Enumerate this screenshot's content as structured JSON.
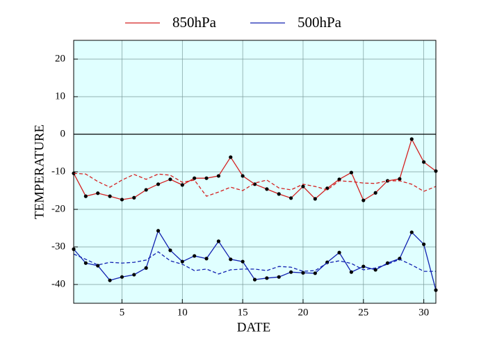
{
  "chart_data": {
    "type": "line",
    "x_label": "DATE",
    "y_label": "TEMPERATURE",
    "x": [
      1,
      2,
      3,
      4,
      5,
      6,
      7,
      8,
      9,
      10,
      11,
      12,
      13,
      14,
      15,
      16,
      17,
      18,
      19,
      20,
      21,
      22,
      23,
      24,
      25,
      26,
      27,
      28,
      29,
      30,
      31
    ],
    "xlim": [
      1,
      31
    ],
    "xticks": [
      5,
      10,
      15,
      20,
      25,
      30
    ],
    "ylim": [
      -45,
      25
    ],
    "yticks": [
      -40,
      -30,
      -20,
      -10,
      0,
      10,
      20
    ],
    "grid": true,
    "zero_line": true,
    "background": "#e0ffff",
    "series": [
      {
        "name": "850hPa",
        "color": "#d42020",
        "markers": true,
        "values": [
          -10.4,
          -16.5,
          -15.7,
          -16.5,
          -17.4,
          -16.9,
          -14.8,
          -13.3,
          -12.0,
          -13.5,
          -11.7,
          -11.7,
          -11.1,
          -6.1,
          -11.1,
          -13.3,
          -14.6,
          -15.9,
          -17.0,
          -13.9,
          -17.2,
          -14.4,
          -12.0,
          -10.2,
          -17.6,
          -15.6,
          -12.4,
          -11.9,
          -1.3,
          -7.4,
          -9.8
        ]
      },
      {
        "name": "500hPa",
        "color": "#1020b0",
        "markers": true,
        "values": [
          -30.6,
          -34.3,
          -35.0,
          -38.9,
          -38.0,
          -37.4,
          -35.6,
          -25.7,
          -30.9,
          -33.9,
          -32.4,
          -33.1,
          -28.5,
          -33.3,
          -33.9,
          -38.7,
          -38.3,
          -38.0,
          -36.7,
          -36.9,
          -37.0,
          -34.1,
          -31.5,
          -36.7,
          -35.2,
          -36.1,
          -34.3,
          -33.1,
          -26.1,
          -29.3,
          -41.5
        ]
      },
      {
        "color": "#d42020",
        "dashed": true,
        "values": [
          -10.4,
          -10.6,
          -12.6,
          -14.1,
          -12.2,
          -10.7,
          -12.0,
          -10.6,
          -10.9,
          -12.8,
          -12.2,
          -16.5,
          -15.4,
          -14.1,
          -15.0,
          -13.0,
          -12.2,
          -14.3,
          -14.8,
          -13.3,
          -13.9,
          -14.8,
          -12.4,
          -12.6,
          -13.0,
          -13.1,
          -12.4,
          -12.4,
          -13.3,
          -15.2,
          -13.9
        ]
      },
      {
        "color": "#1020b0",
        "dashed": true,
        "values": [
          -31.9,
          -33.3,
          -34.8,
          -34.1,
          -34.3,
          -34.1,
          -33.5,
          -31.3,
          -33.7,
          -34.6,
          -36.3,
          -35.9,
          -37.2,
          -36.1,
          -35.9,
          -35.9,
          -36.3,
          -35.2,
          -35.4,
          -36.5,
          -36.3,
          -34.3,
          -33.7,
          -34.4,
          -36.1,
          -35.6,
          -34.6,
          -33.3,
          -34.8,
          -36.5,
          -36.5
        ]
      }
    ]
  }
}
